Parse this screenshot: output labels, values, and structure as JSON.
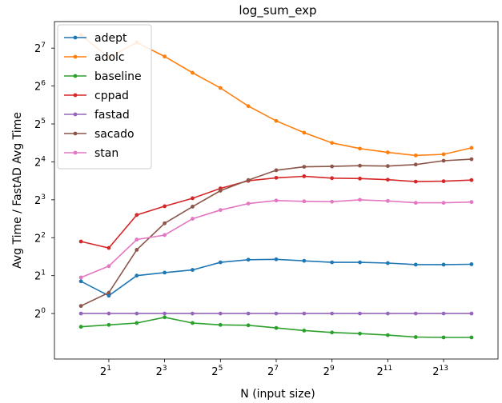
{
  "chart_data": {
    "type": "line",
    "title": "log_sum_exp",
    "xlabel": "N (input size)",
    "ylabel": "Avg Time / FastAD Avg Time",
    "xscale": "log2",
    "yscale": "log2",
    "x_exponents": [
      0,
      1,
      2,
      3,
      4,
      5,
      6,
      7,
      8,
      9,
      10,
      11,
      12,
      13,
      14
    ],
    "x_ticks": [
      {
        "base": "2",
        "exp": "1",
        "value": 2
      },
      {
        "base": "2",
        "exp": "3",
        "value": 8
      },
      {
        "base": "2",
        "exp": "5",
        "value": 32
      },
      {
        "base": "2",
        "exp": "7",
        "value": 128
      },
      {
        "base": "2",
        "exp": "9",
        "value": 512
      },
      {
        "base": "2",
        "exp": "11",
        "value": 2048
      },
      {
        "base": "2",
        "exp": "13",
        "value": 8192
      }
    ],
    "y_ticks": [
      {
        "base": "2",
        "exp": "0",
        "value": 1
      },
      {
        "base": "2",
        "exp": "1",
        "value": 2
      },
      {
        "base": "2",
        "exp": "2",
        "value": 4
      },
      {
        "base": "2",
        "exp": "3",
        "value": 8
      },
      {
        "base": "2",
        "exp": "4",
        "value": 16
      },
      {
        "base": "2",
        "exp": "5",
        "value": 32
      },
      {
        "base": "2",
        "exp": "6",
        "value": 64
      },
      {
        "base": "2",
        "exp": "7",
        "value": 128
      }
    ],
    "xlim_exp": [
      -0.95,
      14.95
    ],
    "ylim_exp": [
      -1.2,
      7.7
    ],
    "grid": false,
    "legend_position": "top-left",
    "series": [
      {
        "name": "adept",
        "color": "#1f77b4",
        "log2_values": [
          0.85,
          0.47,
          1.0,
          1.08,
          1.15,
          1.35,
          1.42,
          1.43,
          1.39,
          1.35,
          1.35,
          1.33,
          1.29,
          1.29,
          1.3
        ]
      },
      {
        "name": "adolc",
        "color": "#ff7f0e",
        "log2_values": [
          7.35,
          6.75,
          7.15,
          6.78,
          6.35,
          5.95,
          5.47,
          5.08,
          4.77,
          4.5,
          4.35,
          4.25,
          4.17,
          4.2,
          4.37
        ]
      },
      {
        "name": "baseline",
        "color": "#2ca02c",
        "log2_values": [
          -0.35,
          -0.3,
          -0.25,
          -0.1,
          -0.25,
          -0.3,
          -0.31,
          -0.38,
          -0.45,
          -0.5,
          -0.53,
          -0.57,
          -0.62,
          -0.63,
          -0.63
        ]
      },
      {
        "name": "cppad",
        "color": "#d62728",
        "log2_values": [
          1.9,
          1.73,
          2.6,
          2.83,
          3.04,
          3.3,
          3.5,
          3.58,
          3.62,
          3.57,
          3.56,
          3.53,
          3.48,
          3.49,
          3.52
        ]
      },
      {
        "name": "fastad",
        "color": "#9467bd",
        "log2_values": [
          0.0,
          0.0,
          0.0,
          0.0,
          0.0,
          0.0,
          0.0,
          0.0,
          0.0,
          0.0,
          0.0,
          0.0,
          0.0,
          0.0,
          0.0
        ]
      },
      {
        "name": "sacado",
        "color": "#8c564b",
        "log2_values": [
          0.2,
          0.55,
          1.68,
          2.38,
          2.82,
          3.24,
          3.52,
          3.78,
          3.87,
          3.88,
          3.9,
          3.89,
          3.93,
          4.03,
          4.07
        ]
      },
      {
        "name": "stan",
        "color": "#e377c2",
        "log2_values": [
          0.95,
          1.25,
          1.95,
          2.07,
          2.5,
          2.73,
          2.9,
          2.98,
          2.96,
          2.95,
          3.0,
          2.97,
          2.92,
          2.92,
          2.94
        ]
      }
    ]
  }
}
